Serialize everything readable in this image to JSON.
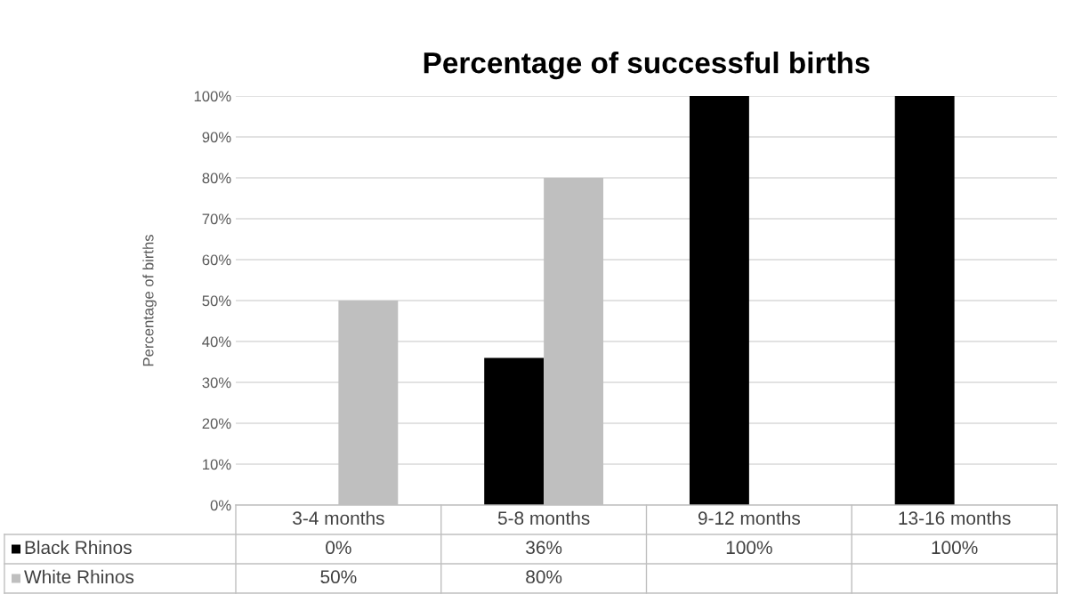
{
  "chart_data": {
    "type": "bar",
    "title": "Percentage of successful births",
    "ylabel": "Percentage of births",
    "categories": [
      "3-4 months",
      "5-8 months",
      "9-12 months",
      "13-16 months"
    ],
    "series": [
      {
        "name": "Black Rhinos",
        "color": "#000000",
        "values": [
          0,
          36,
          100,
          100
        ],
        "value_labels": [
          "0%",
          "36%",
          "100%",
          "100%"
        ]
      },
      {
        "name": "White Rhinos",
        "color": "#bfbfbf",
        "values": [
          50,
          80,
          null,
          null
        ],
        "value_labels": [
          "50%",
          "80%",
          null,
          null
        ]
      }
    ],
    "ylim": [
      0,
      100
    ],
    "yticks": [
      {
        "value": 0,
        "label": "0%"
      },
      {
        "value": 10,
        "label": "10%"
      },
      {
        "value": 20,
        "label": "20%"
      },
      {
        "value": 30,
        "label": "30%"
      },
      {
        "value": 40,
        "label": "40%"
      },
      {
        "value": 50,
        "label": "50%"
      },
      {
        "value": 60,
        "label": "60%"
      },
      {
        "value": 70,
        "label": "70%"
      },
      {
        "value": 80,
        "label": "80%"
      },
      {
        "value": 90,
        "label": "90%"
      },
      {
        "value": 100,
        "label": "100%"
      }
    ],
    "grid": "y",
    "legend": "bottom"
  }
}
